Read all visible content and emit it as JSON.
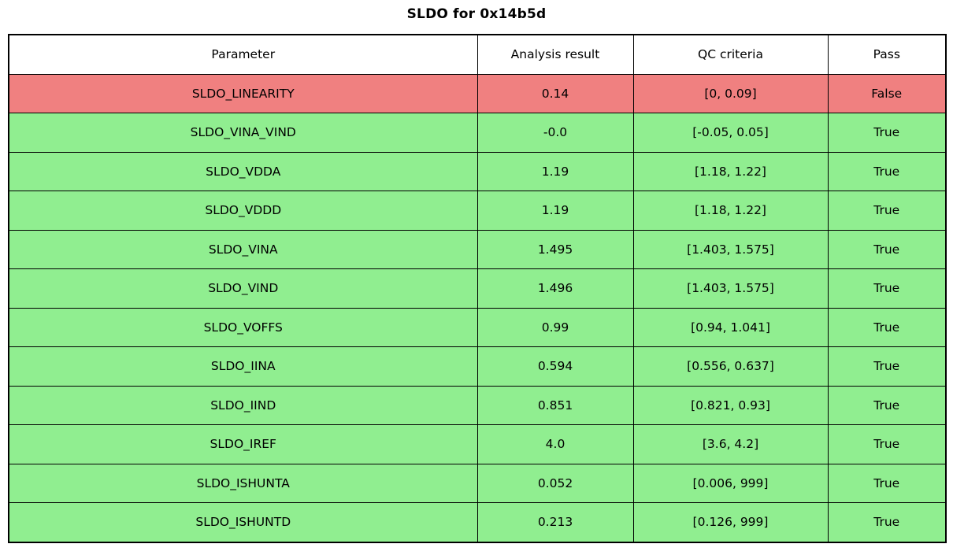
{
  "title": "SLDO for 0x14b5d",
  "colors": {
    "pass_row": "#90ee90",
    "fail_row": "#f08080",
    "header_bg": "#ffffff",
    "border": "#000000",
    "text": "#000000"
  },
  "chart_data": {
    "type": "table",
    "title": "SLDO for 0x14b5d",
    "columns": [
      "Parameter",
      "Analysis result",
      "QC criteria",
      "Pass"
    ],
    "rows": [
      {
        "parameter": "SLDO_LINEARITY",
        "result": "0.14",
        "criteria": "[0, 0.09]",
        "pass": "False"
      },
      {
        "parameter": "SLDO_VINA_VIND",
        "result": "-0.0",
        "criteria": "[-0.05, 0.05]",
        "pass": "True"
      },
      {
        "parameter": "SLDO_VDDA",
        "result": "1.19",
        "criteria": "[1.18, 1.22]",
        "pass": "True"
      },
      {
        "parameter": "SLDO_VDDD",
        "result": "1.19",
        "criteria": "[1.18, 1.22]",
        "pass": "True"
      },
      {
        "parameter": "SLDO_VINA",
        "result": "1.495",
        "criteria": "[1.403, 1.575]",
        "pass": "True"
      },
      {
        "parameter": "SLDO_VIND",
        "result": "1.496",
        "criteria": "[1.403, 1.575]",
        "pass": "True"
      },
      {
        "parameter": "SLDO_VOFFS",
        "result": "0.99",
        "criteria": "[0.94, 1.041]",
        "pass": "True"
      },
      {
        "parameter": "SLDO_IINA",
        "result": "0.594",
        "criteria": "[0.556, 0.637]",
        "pass": "True"
      },
      {
        "parameter": "SLDO_IIND",
        "result": "0.851",
        "criteria": "[0.821, 0.93]",
        "pass": "True"
      },
      {
        "parameter": "SLDO_IREF",
        "result": "4.0",
        "criteria": "[3.6, 4.2]",
        "pass": "True"
      },
      {
        "parameter": "SLDO_ISHUNTA",
        "result": "0.052",
        "criteria": "[0.006, 999]",
        "pass": "True"
      },
      {
        "parameter": "SLDO_ISHUNTD",
        "result": "0.213",
        "criteria": "[0.126, 999]",
        "pass": "True"
      }
    ]
  }
}
